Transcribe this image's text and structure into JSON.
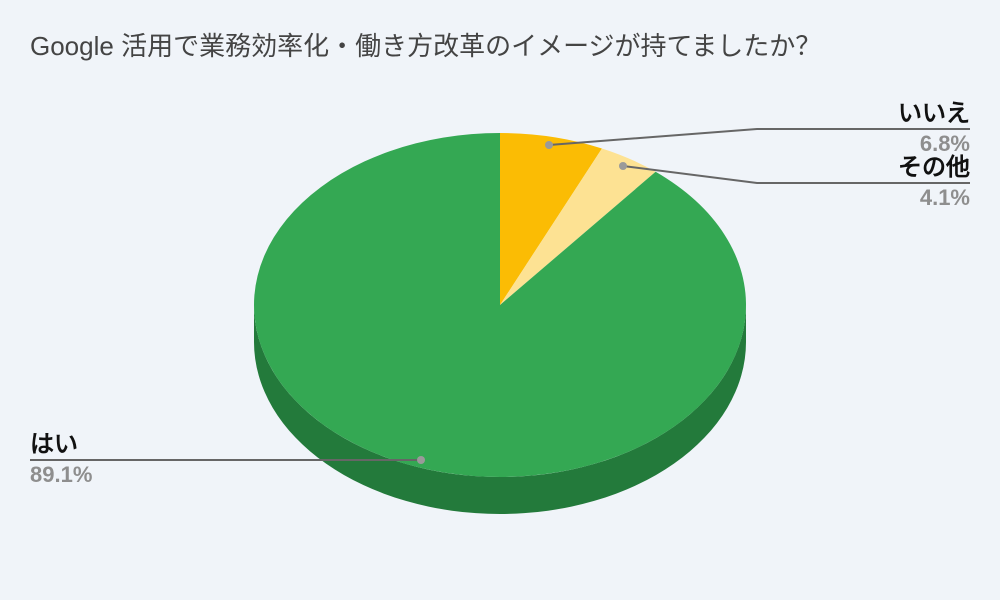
{
  "chart_data": {
    "type": "pie",
    "style": "3d",
    "title": "Google 活用で業務効率化・働き方改革のイメージが持てましたか？",
    "slices": [
      {
        "label": "いいえ",
        "value": 6.8,
        "display": "6.8%",
        "color": "#fbbc04"
      },
      {
        "label": "その他",
        "value": 4.1,
        "display": "4.1%",
        "color": "#fde293"
      },
      {
        "label": "はい",
        "value": 89.1,
        "display": "89.1%",
        "color": "#34a853"
      }
    ],
    "side_color": "#237a3b",
    "leader_color": "#666666",
    "dot_color": "#9a9a9a"
  }
}
